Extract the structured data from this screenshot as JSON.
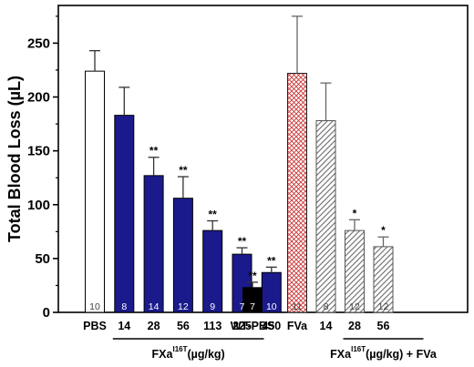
{
  "chart_data": {
    "type": "bar",
    "ylabel": "Total Blood Loss (µL)",
    "ylim": [
      0,
      285
    ],
    "yticks": [
      0,
      50,
      100,
      150,
      200,
      250
    ],
    "groups": [
      {
        "label": "FXa",
        "sup": "I16T",
        "suffix": "(µg/kg)",
        "first_index": 1,
        "last_index": 7
      },
      {
        "label": "FXa",
        "sup": "I16T",
        "suffix": "(µg/kg) + FVa",
        "first_index": 10,
        "last_index": 12
      }
    ],
    "bars": [
      {
        "category": "PBS",
        "value": 224,
        "error": 19,
        "n": "10",
        "sig": "",
        "style": "white"
      },
      {
        "category": "14",
        "value": 183,
        "error": 26,
        "n": "8",
        "sig": "",
        "style": "navy"
      },
      {
        "category": "28",
        "value": 127,
        "error": 17,
        "n": "14",
        "sig": "**",
        "style": "navy"
      },
      {
        "category": "56",
        "value": 106,
        "error": 20,
        "n": "12",
        "sig": "**",
        "style": "navy"
      },
      {
        "category": "113",
        "value": 76,
        "error": 9,
        "n": "9",
        "sig": "**",
        "style": "navy"
      },
      {
        "category": "225",
        "value": 54,
        "error": 6,
        "n": "7",
        "sig": "**",
        "style": "navy"
      },
      {
        "category": "450",
        "value": 37,
        "error": 5,
        "n": "10",
        "sig": "**",
        "style": "navy"
      },
      {
        "category": "WT-PBS",
        "value": 23,
        "error": 5,
        "n": "7",
        "sig": "**",
        "style": "black"
      },
      {
        "category": "FVa",
        "value": 222,
        "error": 53,
        "n": "11",
        "sig": "",
        "style": "red-cross"
      },
      {
        "category": "14",
        "value": 178,
        "error": 35,
        "n": "8",
        "sig": "",
        "style": "gray-hatch"
      },
      {
        "category": "28",
        "value": 76,
        "error": 10,
        "n": "12",
        "sig": "*",
        "style": "gray-hatch"
      },
      {
        "category": "56",
        "value": 61,
        "error": 9,
        "n": "12",
        "sig": "*",
        "style": "gray-hatch"
      }
    ],
    "colors": {
      "navy": "#1a1a8c",
      "black": "#000000",
      "red_hatch": "#cc3333",
      "gray_hatch": "#777777",
      "white": "#ffffff"
    }
  }
}
